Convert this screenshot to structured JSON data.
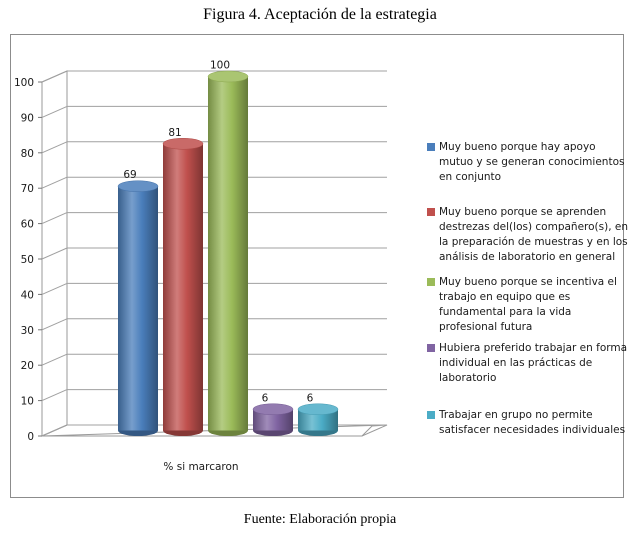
{
  "figure_title": "Figura 4. Aceptación de la estrategia",
  "source_note": "Fuente: Elaboración propia",
  "chart_data": {
    "type": "bar",
    "style": "3d-cylinder",
    "categories": [
      "% si marcaron"
    ],
    "xlabel": "",
    "ylabel": "",
    "ylim": [
      0,
      100
    ],
    "yticks": [
      0,
      10,
      20,
      30,
      40,
      50,
      60,
      70,
      80,
      90,
      100
    ],
    "grid": true,
    "legend_position": "right",
    "series": [
      {
        "name": "Muy bueno porque hay apoyo mutuo y se generan conocimientos en conjunto",
        "values": [
          69
        ],
        "color": "#4a7ebb"
      },
      {
        "name": "Muy bueno porque se aprenden destrezas del(los) compañero(s), en la preparación de muestras y en los análisis de laboratorio en general",
        "values": [
          81
        ],
        "color": "#c0504d"
      },
      {
        "name": "Muy bueno porque se incentiva el trabajo en equipo que es fundamental para la vida profesional futura",
        "values": [
          100
        ],
        "color": "#9bbb59"
      },
      {
        "name": "Hubiera preferido trabajar en forma individual en las prácticas de laboratorio",
        "values": [
          6
        ],
        "color": "#8064a2"
      },
      {
        "name": "Trabajar en grupo no permite satisfacer necesidades individuales",
        "values": [
          6
        ],
        "color": "#4bacc6"
      }
    ]
  }
}
